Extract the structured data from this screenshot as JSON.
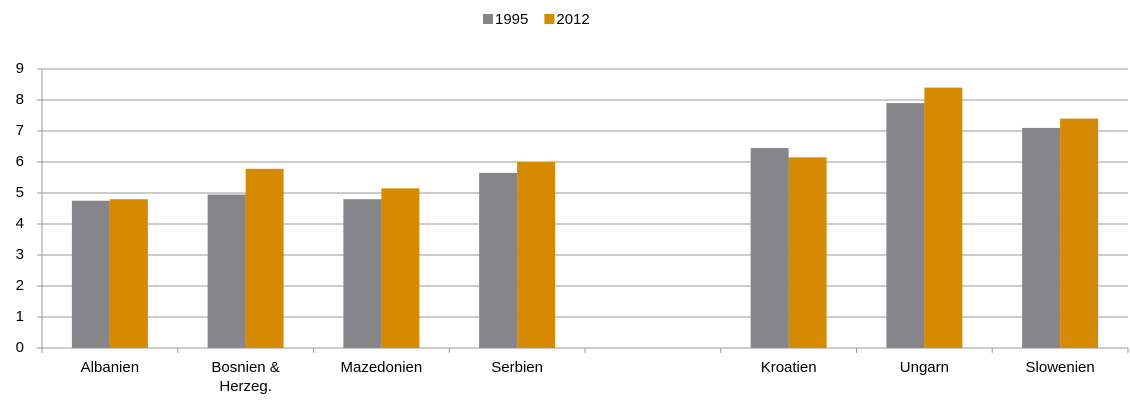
{
  "chart_data": {
    "type": "bar",
    "categories": [
      "Albanien",
      "Bosnien & Herzeg.",
      "Mazedonien",
      "Serbien",
      null,
      "Kroatien",
      "Ungarn",
      "Slowenien"
    ],
    "series": [
      {
        "name": "1995",
        "color": "#86858a",
        "values": [
          4.75,
          4.95,
          4.8,
          5.65,
          null,
          6.45,
          7.9,
          7.1
        ]
      },
      {
        "name": "2012",
        "color": "#d68a00",
        "values": [
          4.8,
          5.78,
          5.15,
          6.0,
          null,
          6.15,
          8.4,
          7.4
        ]
      }
    ],
    "ylim": [
      0,
      9
    ],
    "yticks": [
      0,
      1,
      2,
      3,
      4,
      5,
      6,
      7,
      8,
      9
    ],
    "grid": true,
    "legend": "top"
  }
}
